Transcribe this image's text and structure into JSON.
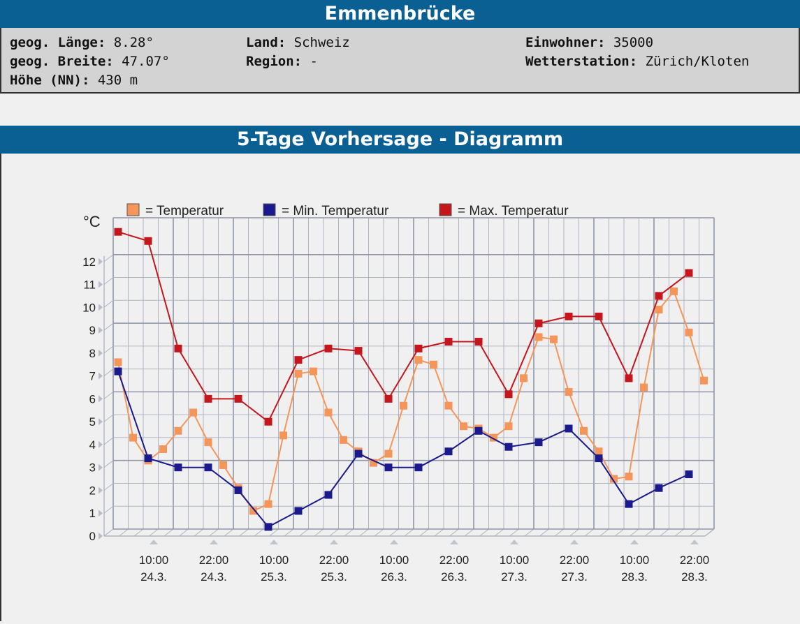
{
  "header": {
    "city": "Emmenbrücke"
  },
  "info": {
    "lon_label": "geog. Länge:",
    "lon_value": "8.28°",
    "lat_label": "geog. Breite:",
    "lat_value": "47.07°",
    "alt_label": "Höhe (NN):",
    "alt_value": "430 m",
    "country_label": "Land:",
    "country_value": "Schweiz",
    "region_label": "Region:",
    "region_value": "-",
    "pop_label": "Einwohner:",
    "pop_value": "35000",
    "station_label": "Wetterstation:",
    "station_value": "Zürich/Kloten"
  },
  "chart_header": {
    "title": "5-Tage Vorhersage - Diagramm"
  },
  "chart_data": {
    "type": "line",
    "ylabel": "°C",
    "ylim": [
      0,
      13
    ],
    "y_ticks": [
      0,
      1,
      2,
      3,
      4,
      5,
      6,
      7,
      8,
      9,
      10,
      11,
      12
    ],
    "x_tick_labels": [
      [
        "10:00",
        "24.3."
      ],
      [
        "22:00",
        "24.3."
      ],
      [
        "10:00",
        "25.3."
      ],
      [
        "22:00",
        "25.3."
      ],
      [
        "10:00",
        "26.3."
      ],
      [
        "22:00",
        "26.3."
      ],
      [
        "10:00",
        "27.3."
      ],
      [
        "22:00",
        "27.3."
      ],
      [
        "10:00",
        "28.3."
      ],
      [
        "22:00",
        "28.3."
      ]
    ],
    "grid": true,
    "legend_position": "top",
    "series": [
      {
        "name": "= Temperatur",
        "color": "#f4955a",
        "values": [
          7.6,
          4.3,
          3.3,
          3.8,
          4.6,
          5.4,
          4.1,
          3.1,
          2.1,
          1.1,
          1.4,
          4.4,
          7.1,
          7.2,
          5.4,
          4.2,
          3.7,
          3.2,
          3.6,
          5.7,
          7.7,
          7.5,
          5.7,
          4.8,
          4.7,
          4.3,
          4.8,
          6.9,
          8.7,
          8.6,
          6.3,
          4.6,
          3.7,
          2.5,
          2.6,
          6.5,
          9.9,
          10.7,
          8.9,
          6.8
        ]
      },
      {
        "name": "= Min. Temperatur",
        "color": "#1a1a8c",
        "values": [
          7.2,
          null,
          3.4,
          null,
          3.0,
          null,
          3.0,
          null,
          2.0,
          null,
          0.4,
          null,
          1.1,
          null,
          1.8,
          null,
          3.6,
          null,
          3.0,
          null,
          3.0,
          null,
          3.7,
          null,
          4.6,
          null,
          3.9,
          null,
          4.1,
          null,
          4.7,
          null,
          3.4,
          null,
          1.4,
          null,
          2.1,
          null,
          2.7,
          null
        ]
      },
      {
        "name": "= Max. Temperatur",
        "color": "#c4161c",
        "values": [
          13.3,
          null,
          12.9,
          null,
          8.2,
          null,
          6.0,
          null,
          6.0,
          null,
          5.0,
          null,
          7.7,
          null,
          8.2,
          null,
          8.1,
          null,
          6.0,
          null,
          8.2,
          null,
          8.5,
          null,
          8.5,
          null,
          6.2,
          null,
          9.3,
          null,
          9.6,
          null,
          9.6,
          null,
          6.9,
          null,
          10.5,
          null,
          11.5,
          null
        ]
      }
    ]
  }
}
